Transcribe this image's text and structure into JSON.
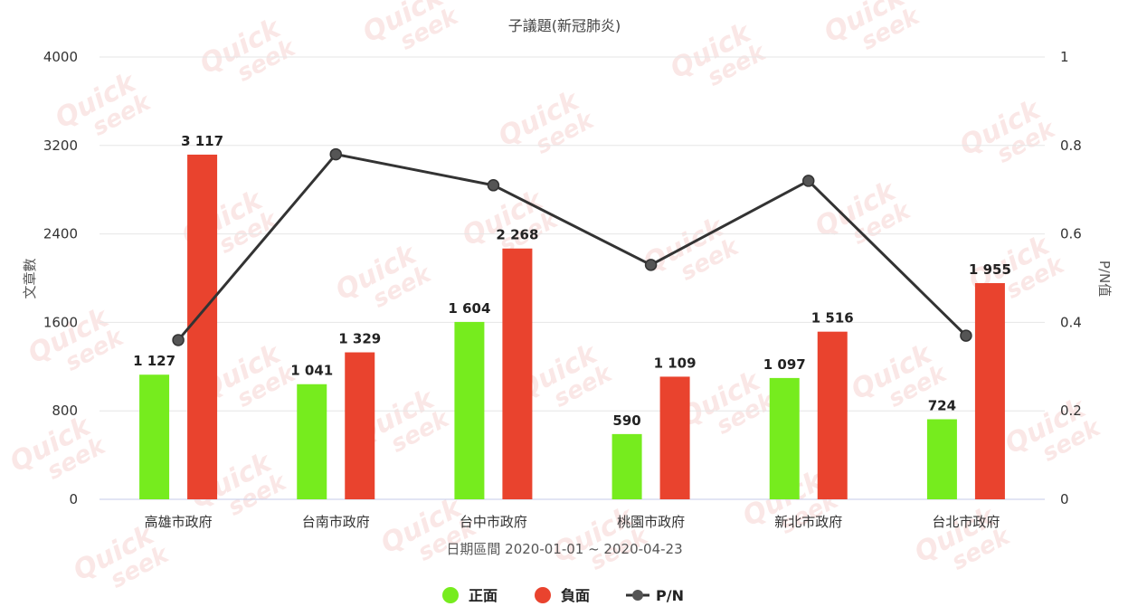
{
  "chart_data": {
    "type": "bar",
    "title": "子議題(新冠肺炎)",
    "xlabel": "日期區間 2020-01-01 ~ 2020-04-23",
    "ylabel": "文章數",
    "y2label": "P/N值",
    "ylim": [
      0,
      4000
    ],
    "yticks": [
      0,
      800,
      1600,
      2400,
      3200,
      4000
    ],
    "y2lim": [
      0,
      1
    ],
    "y2ticks": [
      0,
      0.2,
      0.4,
      0.6,
      0.8,
      1
    ],
    "categories": [
      "高雄市政府",
      "台南市政府",
      "台中市政府",
      "桃園市政府",
      "新北市政府",
      "台北市政府"
    ],
    "series": [
      {
        "name": "正面",
        "kind": "bar",
        "color": "#76ec1e",
        "values": [
          1127,
          1041,
          1604,
          590,
          1097,
          724
        ],
        "labels": [
          "1 127",
          "1 041",
          "1 604",
          "590",
          "1 097",
          "724"
        ]
      },
      {
        "name": "負面",
        "kind": "bar",
        "color": "#e9432e",
        "values": [
          3117,
          1329,
          2268,
          1109,
          1516,
          1955
        ],
        "labels": [
          "3 117",
          "1 329",
          "2 268",
          "1 109",
          "1 516",
          "1 955"
        ]
      },
      {
        "name": "P/N",
        "kind": "line",
        "axis": "right",
        "color": "#333333",
        "values": [
          0.36,
          0.78,
          0.71,
          0.53,
          0.72,
          0.37
        ]
      }
    ],
    "grid": true,
    "legend": "bottom-center"
  },
  "watermark": {
    "line1": "Quick",
    "line2": "seek"
  }
}
